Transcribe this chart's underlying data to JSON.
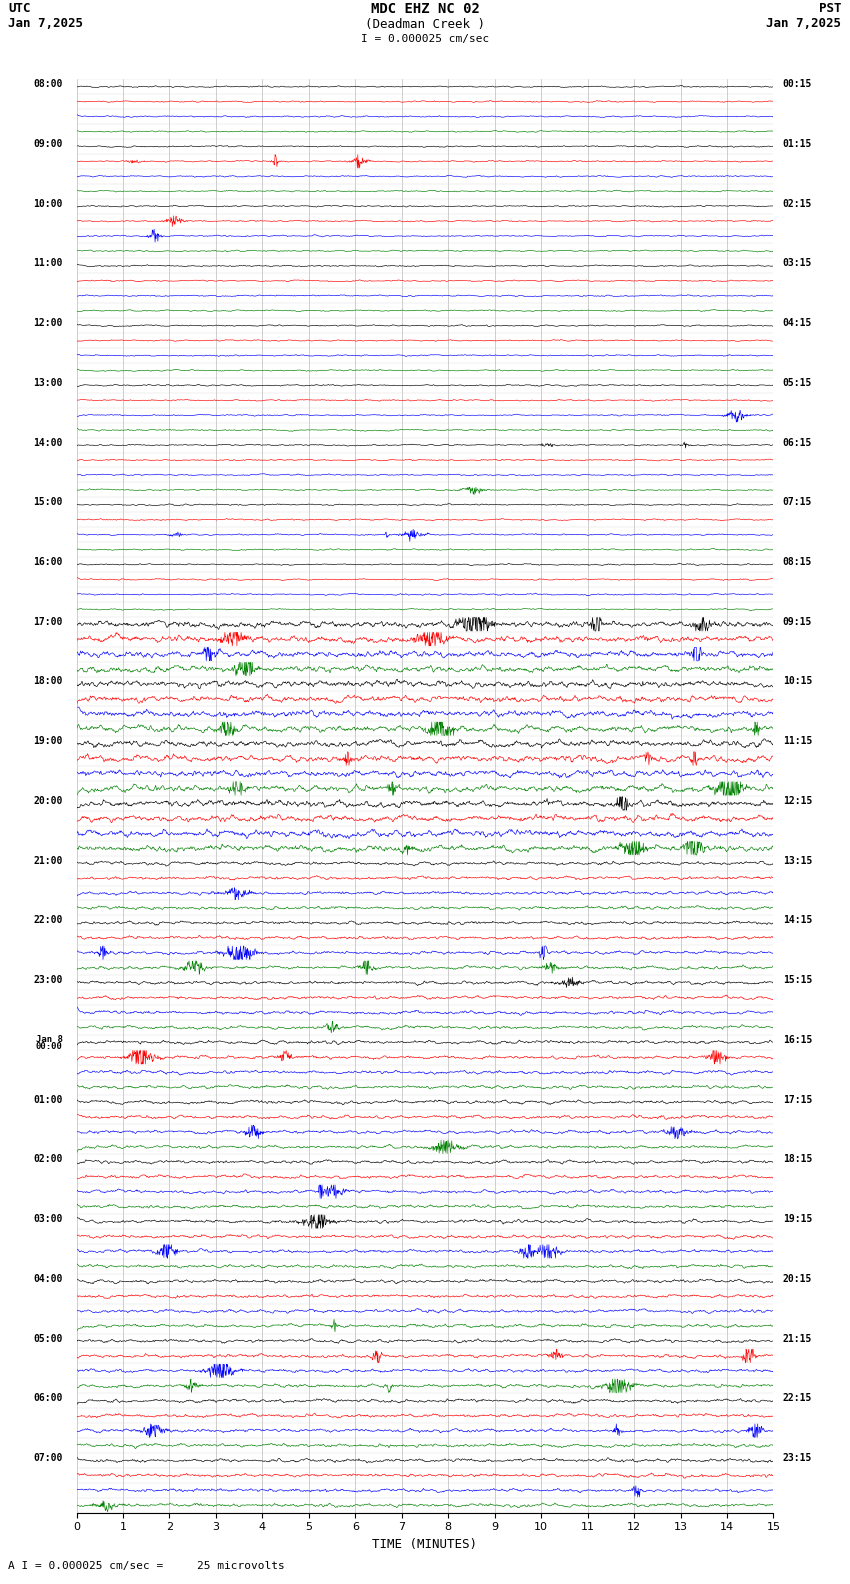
{
  "title_center": "MDC EHZ NC 02",
  "title_sub": "(Deadman Creek )",
  "scale_label": "I = 0.000025 cm/sec",
  "utc_label": "UTC",
  "pst_label": "PST",
  "date_left": "Jan 7,2025",
  "date_right": "Jan 7,2025",
  "bottom_label": "TIME (MINUTES)",
  "bottom_scale": "A I = 0.000025 cm/sec =     25 microvolts",
  "colors": [
    "black",
    "red",
    "blue",
    "green"
  ],
  "bg_color": "#ffffff",
  "n_rows": 96,
  "minutes": 15,
  "left_labels": [
    "08:00",
    "09:00",
    "10:00",
    "11:00",
    "12:00",
    "13:00",
    "14:00",
    "15:00",
    "16:00",
    "17:00",
    "18:00",
    "19:00",
    "20:00",
    "21:00",
    "22:00",
    "23:00",
    "Jan 8\n00:00",
    "01:00",
    "02:00",
    "03:00",
    "04:00",
    "05:00",
    "06:00",
    "07:00"
  ],
  "right_labels": [
    "00:15",
    "01:15",
    "02:15",
    "03:15",
    "04:15",
    "05:15",
    "06:15",
    "07:15",
    "08:15",
    "09:15",
    "10:15",
    "11:15",
    "12:15",
    "13:15",
    "14:15",
    "15:15",
    "16:15",
    "17:15",
    "18:15",
    "19:15",
    "20:15",
    "21:15",
    "22:15",
    "23:15"
  ],
  "high_activity_blocks": [
    9,
    10,
    11,
    12
  ],
  "medium_activity_blocks": [
    13,
    14,
    15,
    16,
    17,
    18,
    19,
    20,
    21,
    22,
    23
  ],
  "seed": 12345
}
